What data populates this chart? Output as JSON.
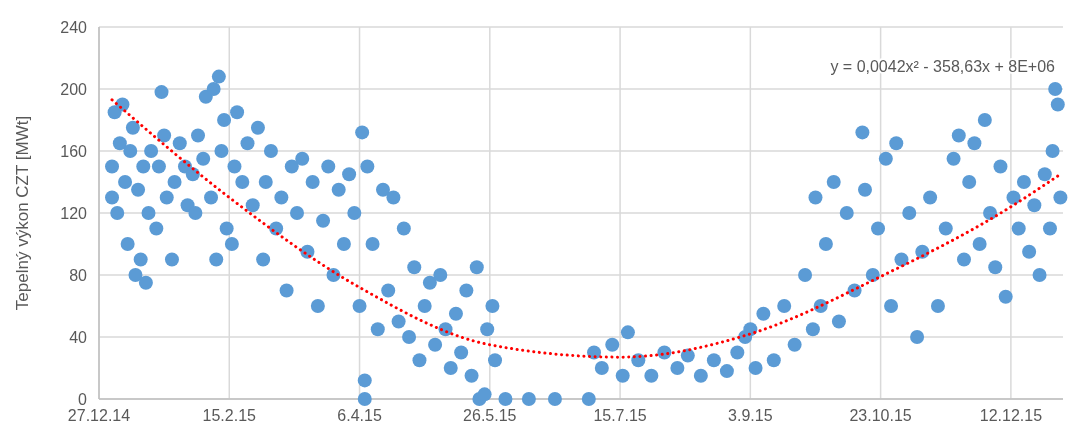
{
  "chart_data": {
    "type": "scatter",
    "ylabel": "Tepelný výkon CZT [MWt]",
    "grid": true,
    "xlim": [
      "2014-12-27",
      "2016-01-01"
    ],
    "xticks": [
      {
        "value": "2014-12-27",
        "label": "27.12.14"
      },
      {
        "value": "2015-02-15",
        "label": "15.2.15"
      },
      {
        "value": "2015-04-06",
        "label": "6.4.15"
      },
      {
        "value": "2015-05-26",
        "label": "26.5.15"
      },
      {
        "value": "2015-07-15",
        "label": "15.7.15"
      },
      {
        "value": "2015-09-03",
        "label": "3.9.15"
      },
      {
        "value": "2015-10-23",
        "label": "23.10.15"
      },
      {
        "value": "2015-12-12",
        "label": "12.12.15"
      }
    ],
    "ylim": [
      0,
      240
    ],
    "yticks": [
      0,
      40,
      80,
      120,
      160,
      200,
      240
    ],
    "annotations": [
      "y = 0,0042x² - 358,63x + 8E+06"
    ],
    "series": [
      {
        "color": "#5b9bd5",
        "marker": "circle",
        "x": [
          "2015-01-01",
          "2015-01-01",
          "2015-01-02",
          "2015-01-03",
          "2015-01-04",
          "2015-01-05",
          "2015-01-06",
          "2015-01-07",
          "2015-01-08",
          "2015-01-09",
          "2015-01-10",
          "2015-01-11",
          "2015-01-12",
          "2015-01-13",
          "2015-01-14",
          "2015-01-15",
          "2015-01-16",
          "2015-01-18",
          "2015-01-19",
          "2015-01-20",
          "2015-01-21",
          "2015-01-22",
          "2015-01-24",
          "2015-01-25",
          "2015-01-27",
          "2015-01-29",
          "2015-01-30",
          "2015-02-01",
          "2015-02-02",
          "2015-02-03",
          "2015-02-05",
          "2015-02-06",
          "2015-02-08",
          "2015-02-09",
          "2015-02-10",
          "2015-02-11",
          "2015-02-12",
          "2015-02-13",
          "2015-02-14",
          "2015-02-16",
          "2015-02-17",
          "2015-02-18",
          "2015-02-20",
          "2015-02-22",
          "2015-02-24",
          "2015-02-26",
          "2015-02-28",
          "2015-03-01",
          "2015-03-03",
          "2015-03-05",
          "2015-03-07",
          "2015-03-09",
          "2015-03-11",
          "2015-03-13",
          "2015-03-15",
          "2015-03-17",
          "2015-03-19",
          "2015-03-21",
          "2015-03-23",
          "2015-03-25",
          "2015-03-27",
          "2015-03-29",
          "2015-03-31",
          "2015-04-02",
          "2015-04-04",
          "2015-04-06",
          "2015-04-07",
          "2015-04-08",
          "2015-04-08",
          "2015-04-09",
          "2015-04-11",
          "2015-04-13",
          "2015-04-15",
          "2015-04-17",
          "2015-04-19",
          "2015-04-21",
          "2015-04-23",
          "2015-04-25",
          "2015-04-27",
          "2015-04-29",
          "2015-05-01",
          "2015-05-03",
          "2015-05-05",
          "2015-05-07",
          "2015-05-09",
          "2015-05-11",
          "2015-05-13",
          "2015-05-15",
          "2015-05-17",
          "2015-05-19",
          "2015-05-21",
          "2015-05-22",
          "2015-05-24",
          "2015-05-25",
          "2015-05-27",
          "2015-05-28",
          "2015-06-01",
          "2015-06-10",
          "2015-06-20",
          "2015-07-03",
          "2015-07-05",
          "2015-07-08",
          "2015-07-12",
          "2015-07-16",
          "2015-07-18",
          "2015-07-22",
          "2015-07-27",
          "2015-08-01",
          "2015-08-06",
          "2015-08-10",
          "2015-08-15",
          "2015-08-20",
          "2015-08-25",
          "2015-08-29",
          "2015-09-01",
          "2015-09-03",
          "2015-09-05",
          "2015-09-08",
          "2015-09-12",
          "2015-09-16",
          "2015-09-20",
          "2015-09-24",
          "2015-09-27",
          "2015-09-28",
          "2015-09-30",
          "2015-10-02",
          "2015-10-05",
          "2015-10-07",
          "2015-10-10",
          "2015-10-13",
          "2015-10-16",
          "2015-10-17",
          "2015-10-20",
          "2015-10-22",
          "2015-10-25",
          "2015-10-27",
          "2015-10-29",
          "2015-10-31",
          "2015-11-03",
          "2015-11-06",
          "2015-11-08",
          "2015-11-11",
          "2015-11-14",
          "2015-11-17",
          "2015-11-20",
          "2015-11-22",
          "2015-11-24",
          "2015-11-26",
          "2015-11-28",
          "2015-11-30",
          "2015-12-02",
          "2015-12-04",
          "2015-12-06",
          "2015-12-08",
          "2015-12-10",
          "2015-12-13",
          "2015-12-15",
          "2015-12-17",
          "2015-12-19",
          "2015-12-21",
          "2015-12-23",
          "2015-12-25",
          "2015-12-27",
          "2015-12-28",
          "2015-12-29",
          "2015-12-30",
          "2015-12-31"
        ],
        "values": [
          150,
          130,
          185,
          120,
          165,
          190,
          140,
          100,
          160,
          175,
          80,
          135,
          90,
          150,
          75,
          120,
          160,
          110,
          150,
          198,
          170,
          130,
          90,
          140,
          165,
          150,
          125,
          145,
          120,
          170,
          155,
          195,
          130,
          200,
          90,
          208,
          160,
          180,
          110,
          100,
          150,
          185,
          140,
          165,
          125,
          175,
          90,
          140,
          160,
          110,
          130,
          70,
          150,
          120,
          155,
          95,
          140,
          60,
          115,
          150,
          80,
          135,
          100,
          145,
          120,
          60,
          172,
          12,
          0,
          150,
          100,
          45,
          135,
          70,
          130,
          50,
          110,
          40,
          85,
          25,
          60,
          75,
          35,
          80,
          45,
          20,
          55,
          30,
          70,
          15,
          85,
          0,
          3,
          45,
          60,
          25,
          0,
          0,
          0,
          0,
          30,
          20,
          35,
          15,
          43,
          25,
          15,
          30,
          20,
          28,
          15,
          25,
          18,
          30,
          40,
          45,
          20,
          55,
          25,
          60,
          35,
          80,
          45,
          130,
          60,
          100,
          140,
          50,
          120,
          70,
          172,
          135,
          80,
          110,
          155,
          60,
          165,
          90,
          120,
          40,
          95,
          130,
          60,
          110,
          155,
          170,
          90,
          140,
          165,
          100,
          180,
          120,
          85,
          150,
          66,
          130,
          110,
          140,
          95,
          125,
          80,
          145,
          110,
          160,
          200,
          190,
          130
        ]
      },
      {
        "type": "line",
        "color": "#ff0000",
        "line_style": "dotted",
        "marker": "none",
        "x": [
          "2015-01-01",
          "2015-02-15",
          "2015-04-06",
          "2015-05-26",
          "2015-07-15",
          "2015-09-03",
          "2015-10-23",
          "2015-12-12",
          "2015-12-31"
        ],
        "values": [
          193,
          130,
          72,
          35,
          27,
          42,
          79,
          124,
          145
        ]
      }
    ]
  }
}
